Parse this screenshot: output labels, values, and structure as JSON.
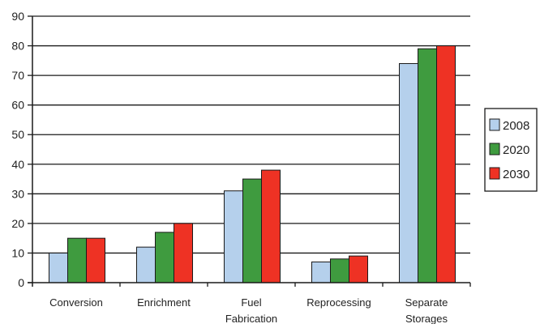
{
  "chart_data": {
    "type": "bar",
    "categories": [
      [
        "Conversion"
      ],
      [
        "Enrichment"
      ],
      [
        "Fuel",
        "Fabrication"
      ],
      [
        "Reprocessing"
      ],
      [
        "Separate",
        "Storages"
      ]
    ],
    "series": [
      {
        "name": "2008",
        "values": [
          10,
          12,
          31,
          7,
          74
        ]
      },
      {
        "name": "2020",
        "values": [
          15,
          17,
          35,
          8,
          79
        ]
      },
      {
        "name": "2030",
        "values": [
          15,
          20,
          38,
          9,
          80
        ]
      }
    ],
    "series_colors": [
      "#b5d0ec",
      "#3f9b3f",
      "#ee3224"
    ],
    "ylim": [
      0,
      90
    ],
    "yticks": [
      0,
      10,
      20,
      30,
      40,
      50,
      60,
      70,
      80,
      90
    ],
    "grid": true,
    "legend": {
      "placement": "right"
    },
    "title": "",
    "xlabel": "",
    "ylabel": ""
  }
}
